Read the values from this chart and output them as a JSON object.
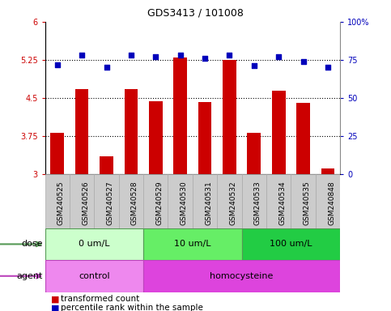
{
  "title": "GDS3413 / 101008",
  "samples": [
    "GSM240525",
    "GSM240526",
    "GSM240527",
    "GSM240528",
    "GSM240529",
    "GSM240530",
    "GSM240531",
    "GSM240532",
    "GSM240533",
    "GSM240534",
    "GSM240535",
    "GSM240848"
  ],
  "bar_values": [
    3.82,
    4.68,
    3.35,
    4.68,
    4.43,
    5.3,
    4.42,
    5.25,
    3.82,
    4.65,
    4.4,
    3.12
  ],
  "dot_values": [
    72,
    78,
    70,
    78,
    77,
    78,
    76,
    78,
    71,
    77,
    74,
    70
  ],
  "bar_color": "#cc0000",
  "dot_color": "#0000bb",
  "ylim_left": [
    3.0,
    6.0
  ],
  "ylim_right": [
    0,
    100
  ],
  "yticks_left": [
    3.0,
    3.75,
    4.5,
    5.25,
    6.0
  ],
  "ytick_labels_left": [
    "3",
    "3.75",
    "4.5",
    "5.25",
    "6"
  ],
  "yticks_right": [
    0,
    25,
    50,
    75,
    100
  ],
  "ytick_labels_right": [
    "0",
    "25",
    "50",
    "75",
    "100%"
  ],
  "hlines": [
    3.75,
    4.5,
    5.25
  ],
  "dose_groups": [
    {
      "label": "0 um/L",
      "start": 0,
      "end": 4,
      "color": "#ccffcc"
    },
    {
      "label": "10 um/L",
      "start": 4,
      "end": 8,
      "color": "#66ee66"
    },
    {
      "label": "100 um/L",
      "start": 8,
      "end": 12,
      "color": "#22cc44"
    }
  ],
  "agent_groups": [
    {
      "label": "control",
      "start": 0,
      "end": 4,
      "color": "#ee88ee"
    },
    {
      "label": "homocysteine",
      "start": 4,
      "end": 12,
      "color": "#dd44dd"
    }
  ],
  "legend_items": [
    {
      "label": "transformed count",
      "color": "#cc0000"
    },
    {
      "label": "percentile rank within the sample",
      "color": "#0000bb"
    }
  ],
  "bar_width": 0.55,
  "base_value": 3.0,
  "bg_color": "#ffffff",
  "tick_label_fontsize": 7,
  "sample_label_fontsize": 6.5,
  "title_fontsize": 9,
  "annot_fontsize": 8,
  "legend_fontsize": 7.5
}
